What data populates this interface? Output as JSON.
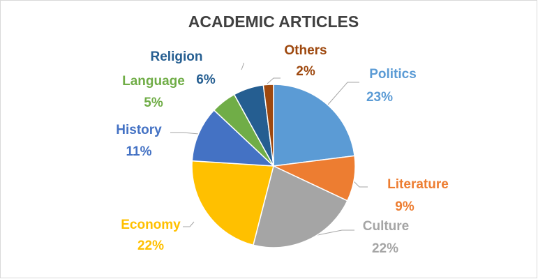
{
  "chart_data": {
    "type": "pie",
    "title": "ACADEMIC ARTICLES",
    "categories": [
      "Politics",
      "Literature",
      "Culture",
      "Economy",
      "History",
      "Language",
      "Religion",
      "Others"
    ],
    "values": [
      23,
      9,
      22,
      22,
      11,
      5,
      6,
      2
    ],
    "value_labels": [
      "23%",
      "9%",
      "22%",
      "22%",
      "11%",
      "5%",
      "6%",
      "2%"
    ],
    "colors": [
      "#5b9bd5",
      "#ed7d31",
      "#a5a5a5",
      "#ffc000",
      "#4472c4",
      "#70ad47",
      "#255e91",
      "#9e480e"
    ]
  }
}
